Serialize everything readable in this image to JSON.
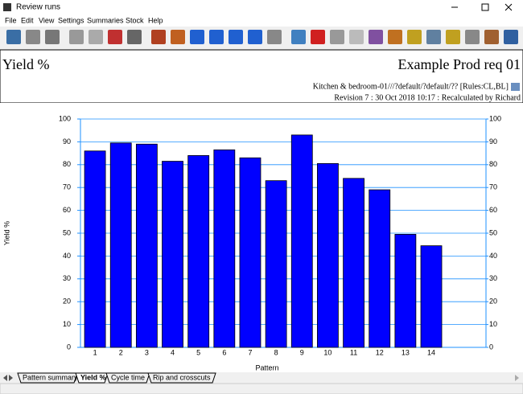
{
  "window": {
    "title": "Review runs"
  },
  "menu": [
    "File",
    "Edit",
    "View",
    "Settings",
    "Summaries",
    "Stock",
    "Help"
  ],
  "header": {
    "title": "Yield %",
    "job": "Example Prod req 01",
    "details": "Kitchen & bedroom-01///?default/?default/?? [Rules:CL,BL]",
    "revision": "Revision 7 : 30 Oct 2018 10:17 : Recalculated by Richard"
  },
  "tabs": [
    "Pattern summary",
    "Yield %",
    "Cycle time",
    "Rip and crosscuts"
  ],
  "active_tab": 1,
  "chart_data": {
    "type": "bar",
    "x_label": "Pattern",
    "y_label": "Yield %",
    "categories": [
      "1",
      "2",
      "3",
      "4",
      "5",
      "6",
      "7",
      "8",
      "9",
      "10",
      "11",
      "12",
      "13",
      "14"
    ],
    "values": [
      86,
      89.5,
      89,
      81.5,
      84,
      86.5,
      83,
      73,
      93,
      80.5,
      74,
      69,
      49.5,
      44.5
    ],
    "color": "#0000ff",
    "ylim": [
      0,
      100
    ],
    "yticks": [
      0,
      10,
      20,
      30,
      40,
      50,
      60,
      70,
      80,
      90,
      100
    ],
    "y2lim": [
      0,
      100
    ],
    "y2ticks": [
      0,
      10,
      20,
      30,
      40,
      50,
      60,
      70,
      80,
      90,
      100
    ],
    "grid": true
  }
}
